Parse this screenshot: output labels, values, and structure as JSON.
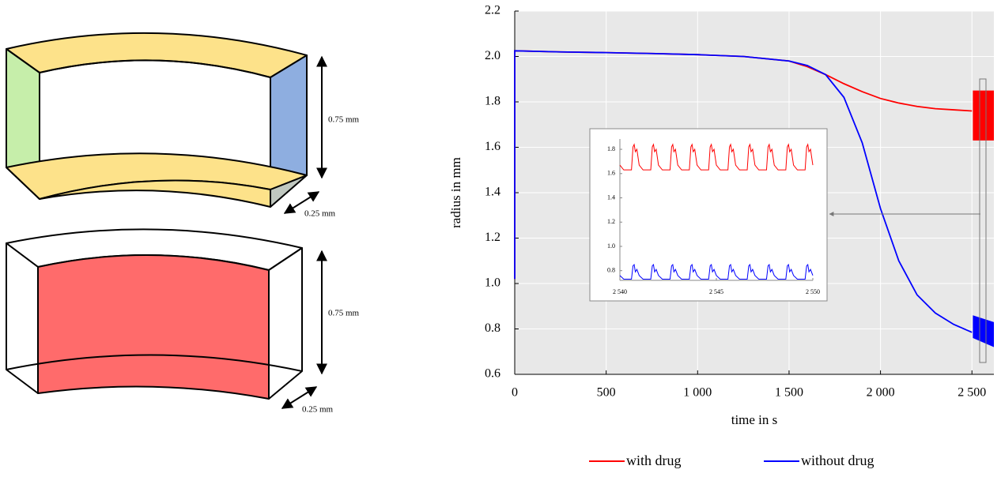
{
  "diagram": {
    "labels": [
      "0.75 mm",
      "0.25 mm",
      "0.75 mm",
      "0.25 mm"
    ]
  },
  "chart_data": [
    {
      "type": "line",
      "xlabel": "time in s",
      "ylabel": "radius in mm",
      "x": [
        0,
        0,
        250,
        500,
        750,
        1000,
        1250,
        1500,
        1600,
        1700,
        1800,
        1900,
        2000,
        2100,
        2200,
        2300,
        2400,
        2500
      ],
      "xlim": [
        0,
        2620
      ],
      "ylim": [
        0.6,
        2.2
      ],
      "xticks": [
        0,
        500,
        {
          "value": 1000,
          "label": "1 000"
        },
        {
          "value": 1500,
          "label": "1 500"
        },
        {
          "value": 2000,
          "label": "2 000"
        },
        {
          "value": 2500,
          "label": "2 500"
        }
      ],
      "yticks": [
        0.6,
        0.8,
        {
          "value": 1,
          "label": "1.0"
        },
        1.2,
        1.4,
        1.6,
        1.8,
        {
          "value": 2,
          "label": "2.0"
        },
        2.2
      ],
      "grid": true,
      "legend": "bottom",
      "series": [
        {
          "name": "with drug",
          "color": "#ff0000",
          "values": [
            1.02,
            2.025,
            2.02,
            2.017,
            2.013,
            2.008,
            2.0,
            1.98,
            1.955,
            1.92,
            1.88,
            1.845,
            1.815,
            1.795,
            1.78,
            1.77,
            1.765,
            1.76
          ],
          "band": {
            "x": [
              2505,
              2620
            ],
            "low": [
              1.63,
              1.63
            ],
            "high": [
              1.85,
              1.85
            ]
          }
        },
        {
          "name": "without drug",
          "color": "#0000ff",
          "values": [
            1.02,
            2.025,
            2.02,
            2.017,
            2.013,
            2.008,
            2.0,
            1.98,
            1.96,
            1.92,
            1.82,
            1.62,
            1.33,
            1.1,
            0.95,
            0.87,
            0.82,
            0.785
          ],
          "band": {
            "x": [
              2505,
              2620
            ],
            "low": [
              0.76,
              0.72
            ],
            "high": [
              0.86,
              0.83
            ]
          }
        }
      ]
    },
    {
      "type": "line",
      "x": [
        2540,
        2540.2,
        2540.6,
        2540.68,
        2540.74,
        2540.8,
        2540.88,
        2541,
        2541.2,
        2541.6,
        2541.68,
        2541.74,
        2541.8,
        2541.88,
        2542,
        2542.2,
        2542.6,
        2542.68,
        2542.74,
        2542.8,
        2542.88,
        2543,
        2543.2,
        2543.6,
        2543.68,
        2543.74,
        2543.8,
        2543.88,
        2544,
        2544.2,
        2544.6,
        2544.68,
        2544.74,
        2544.8,
        2544.88,
        2545,
        2545.2,
        2545.6,
        2545.68,
        2545.74,
        2545.8,
        2545.88,
        2546,
        2546.2,
        2546.6,
        2546.68,
        2546.74,
        2546.8,
        2546.88,
        2547,
        2547.2,
        2547.6,
        2547.68,
        2547.74,
        2547.8,
        2547.88,
        2548,
        2548.2,
        2548.6,
        2548.68,
        2548.74,
        2548.8,
        2548.88,
        2549,
        2549.2,
        2549.6,
        2549.68,
        2549.74,
        2549.8,
        2549.88,
        2550
      ],
      "xlim": [
        2540,
        2550
      ],
      "ylim": [
        0.72,
        1.885
      ],
      "xticks": [
        {
          "value": 2540,
          "label": "2 540"
        },
        {
          "value": 2545,
          "label": "2 545"
        },
        {
          "value": 2550,
          "label": "2 550"
        }
      ],
      "yticks": [
        0.8,
        {
          "value": 1,
          "label": "1.0"
        },
        1.2,
        1.4,
        1.6,
        1.8
      ],
      "grid": false,
      "series": [
        {
          "color": "#ff0000",
          "values": [
            1.67,
            1.63,
            1.63,
            1.82,
            1.84,
            1.78,
            1.8,
            1.67,
            1.63,
            1.63,
            1.82,
            1.84,
            1.78,
            1.8,
            1.67,
            1.63,
            1.63,
            1.82,
            1.84,
            1.78,
            1.8,
            1.67,
            1.63,
            1.63,
            1.82,
            1.84,
            1.78,
            1.8,
            1.67,
            1.63,
            1.63,
            1.82,
            1.84,
            1.78,
            1.8,
            1.67,
            1.63,
            1.63,
            1.82,
            1.84,
            1.78,
            1.8,
            1.67,
            1.63,
            1.63,
            1.82,
            1.84,
            1.78,
            1.8,
            1.67,
            1.63,
            1.63,
            1.82,
            1.84,
            1.78,
            1.8,
            1.67,
            1.63,
            1.63,
            1.82,
            1.84,
            1.78,
            1.8,
            1.67,
            1.63,
            1.63,
            1.82,
            1.84,
            1.78,
            1.8,
            1.67
          ]
        },
        {
          "color": "#0000ff",
          "values": [
            0.76,
            0.73,
            0.73,
            0.84,
            0.85,
            0.79,
            0.81,
            0.76,
            0.73,
            0.73,
            0.84,
            0.85,
            0.79,
            0.81,
            0.76,
            0.73,
            0.73,
            0.84,
            0.85,
            0.79,
            0.81,
            0.76,
            0.73,
            0.73,
            0.84,
            0.85,
            0.79,
            0.81,
            0.76,
            0.73,
            0.73,
            0.84,
            0.85,
            0.79,
            0.81,
            0.76,
            0.73,
            0.73,
            0.84,
            0.85,
            0.79,
            0.81,
            0.76,
            0.73,
            0.73,
            0.84,
            0.85,
            0.79,
            0.81,
            0.76,
            0.73,
            0.73,
            0.84,
            0.85,
            0.79,
            0.81,
            0.76,
            0.73,
            0.73,
            0.84,
            0.85,
            0.79,
            0.81,
            0.76,
            0.73,
            0.73,
            0.84,
            0.85,
            0.79,
            0.81,
            0.76
          ]
        }
      ]
    }
  ]
}
